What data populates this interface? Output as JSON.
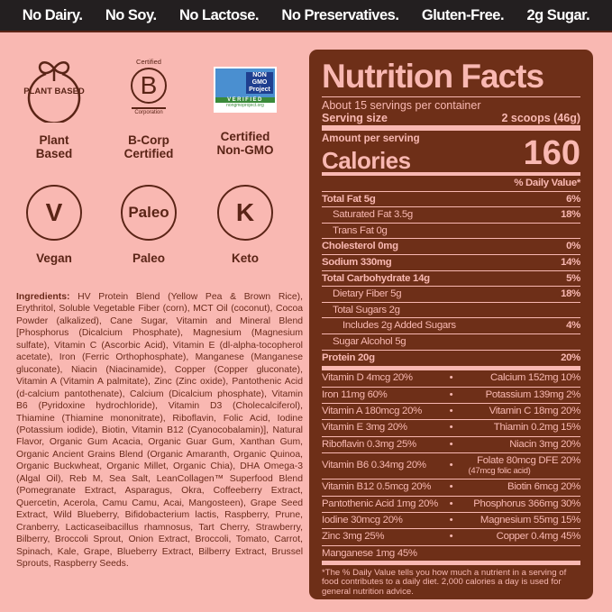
{
  "banner": [
    "No Dairy.",
    "No Soy.",
    "No Lactose.",
    "No Preservatives.",
    "Gluten-Free.",
    "2g Sugar."
  ],
  "badges": [
    {
      "icon": "plant-based-icon",
      "icon_text": "PLANT BASED",
      "label1": "Plant",
      "label2": "Based"
    },
    {
      "icon": "b-corp-icon",
      "icon_top": "Certified",
      "icon_text": "B",
      "icon_bottom": "Corporation",
      "label1": "B-Corp",
      "label2": "Certified"
    },
    {
      "icon": "non-gmo-icon",
      "icon_text": "NON GMO Project",
      "icon_verified": "VERIFIED",
      "icon_url": "nongmoproject.org",
      "label1": "Certified",
      "label2": "Non-GMO"
    },
    {
      "icon": "vegan-icon",
      "icon_text": "V",
      "label1": "Vegan"
    },
    {
      "icon": "paleo-icon",
      "icon_text": "Paleo",
      "label1": "Paleo"
    },
    {
      "icon": "keto-icon",
      "icon_text": "K",
      "label1": "Keto"
    }
  ],
  "ingredients": {
    "heading": "Ingredients:",
    "text": " HV Protein Blend (Yellow Pea & Brown Rice), Erythritol, Soluble Vegetable Fiber (corn), MCT Oil (coconut), Cocoa Powder (alkalized), Cane Sugar, Vitamin and Mineral Blend [Phosphorus (Dicalcium Phosphate), Magnesium (Magnesium sulfate), Vitamin C (Ascorbic Acid), Vitamin E (dl-alpha-tocopherol acetate), Iron (Ferric Orthophosphate), Manganese (Manganese gluconate), Niacin (Niacinamide), Copper (Copper gluconate), Vitamin A (Vitamin A palmitate), Zinc (Zinc oxide), Pantothenic Acid (d-calcium pantothenate), Calcium (Dicalcium phosphate), Vitamin B6 (Pyridoxine hydrochloride), Vitamin D3 (Cholecalciferol), Thiamine (Thiamine mononitrate), Riboflavin, Folic Acid, Iodine (Potassium iodide), Biotin, Vitamin B12 (Cyanocobalamin)], Natural Flavor, Organic Gum Acacia, Organic Guar Gum, Xanthan Gum, Organic Ancient Grains Blend (Organic Amaranth, Organic Quinoa, Organic Buckwheat, Organic Millet, Organic Chia), DHA Omega-3 (Algal Oil), Reb M, Sea Salt, LeanCollagen™ Superfood Blend (Pomegranate Extract, Asparagus, Okra, Coffeeberry Extract, Quercetin, Acerola, Camu Camu, Acai, Mangosteen), Grape Seed Extract, Wild Blueberry, Bifidobacterium lactis, Raspberry, Prune, Cranberry, Lacticaseibacillus rhamnosus, Tart Cherry, Strawberry, Bilberry, Broccoli Sprout, Onion Extract, Broccoli, Tomato, Carrot, Spinach, Kale, Grape, Blueberry Extract, Bilberry Extract, Brussel Sprouts, Raspberry Seeds."
  },
  "nutrition": {
    "title": "Nutrition Facts",
    "servings": "About 15 servings per container",
    "serving_label": "Serving size",
    "serving_value": "2 scoops (46g)",
    "amount_label": "Amount per serving",
    "calories_label": "Calories",
    "calories": "160",
    "dv_header": "% Daily Value*",
    "rows": [
      {
        "name": "Total Fat 5g",
        "dv": "6%"
      },
      {
        "name": "Saturated Fat 3.5g",
        "dv": "18%"
      },
      {
        "name": "Trans Fat 0g",
        "dv": ""
      },
      {
        "name": "Cholesterol 0mg",
        "dv": "0%"
      },
      {
        "name": "Sodium 330mg",
        "dv": "14%"
      },
      {
        "name": "Total Carbohydrate 14g",
        "dv": "5%"
      },
      {
        "name": "Dietary Fiber 5g",
        "dv": "18%"
      },
      {
        "name": "Total Sugars 2g",
        "dv": ""
      },
      {
        "name": "Includes 2g Added Sugars",
        "dv": "4%"
      },
      {
        "name": "Sugar Alcohol 5g",
        "dv": ""
      },
      {
        "name": "Protein 20g",
        "dv": "20%"
      }
    ],
    "vitamins": [
      [
        "Vitamin D 4mcg 20%",
        "Calcium 152mg 10%"
      ],
      [
        "Iron 11mg 60%",
        "Potassium 139mg 2%"
      ],
      [
        "Vitamin A 180mcg 20%",
        "Vitamin C 18mg 20%"
      ],
      [
        "Vitamin E 3mg 20%",
        "Thiamin 0.2mg 15%"
      ],
      [
        "Riboflavin 0.3mg 25%",
        "Niacin 3mg 20%"
      ],
      [
        "Vitamin B6 0.34mg 20%",
        "Folate 80mcg DFE 20%"
      ],
      [
        "Vitamin B12 0.5mcg 20%",
        "Biotin 6mcg 20%"
      ],
      [
        "Pantothenic Acid 1mg 20%",
        "Phosphorus 366mg 30%"
      ],
      [
        "Iodine 30mcg 20%",
        "Magnesium 55mg 15%"
      ],
      [
        "Zinc 3mg 25%",
        "Copper 0.4mg 45%"
      ]
    ],
    "folate_note": "(47mcg folic acid)",
    "manganese": "Manganese 1mg 45%",
    "bullet": "•",
    "footnote": "*The % Daily Value tells you how much a nutrient in a serving of food contributes to a daily diet. 2,000 calories a day is used for general nutrition advice."
  }
}
